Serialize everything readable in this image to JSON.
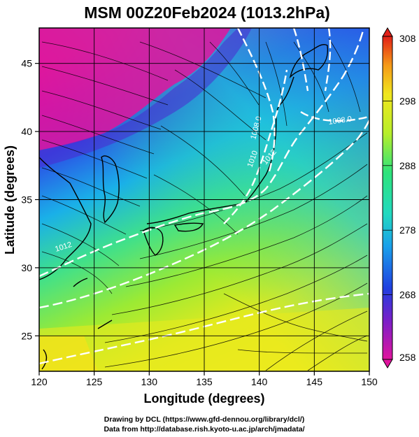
{
  "title": "MSM 00Z20Feb2024 (1013.2hPa)",
  "xlabel": "Longitude (degrees)",
  "ylabel": "Latitude  (degrees)",
  "credits": [
    "Drawing by DCL (https://www.gfd-dennou.org/library/dcl/)",
    "Data from http://database.rish.kyoto-u.ac.jp/arch/jmadata/"
  ],
  "chart_data": {
    "type": "map",
    "field": "temperature with streamlines",
    "xlim": [
      120,
      150
    ],
    "ylim": [
      22.4,
      47.6
    ],
    "x_ticks": [
      120,
      125,
      130,
      135,
      140,
      145,
      150
    ],
    "y_ticks": [
      25,
      30,
      35,
      40,
      45
    ],
    "colorbar": {
      "min": 258,
      "max": 308,
      "ticks": [
        258,
        268,
        278,
        288,
        298,
        308
      ],
      "colors": [
        "#e0149e",
        "#6a1fc8",
        "#1f3fe0",
        "#14b4ea",
        "#2ee37a",
        "#b7ee2a",
        "#f0e61e",
        "#f59a18",
        "#e22018"
      ]
    },
    "contour_labels": [
      "1008.0",
      "1010",
      "1012",
      "1012",
      "1008.0"
    ]
  }
}
